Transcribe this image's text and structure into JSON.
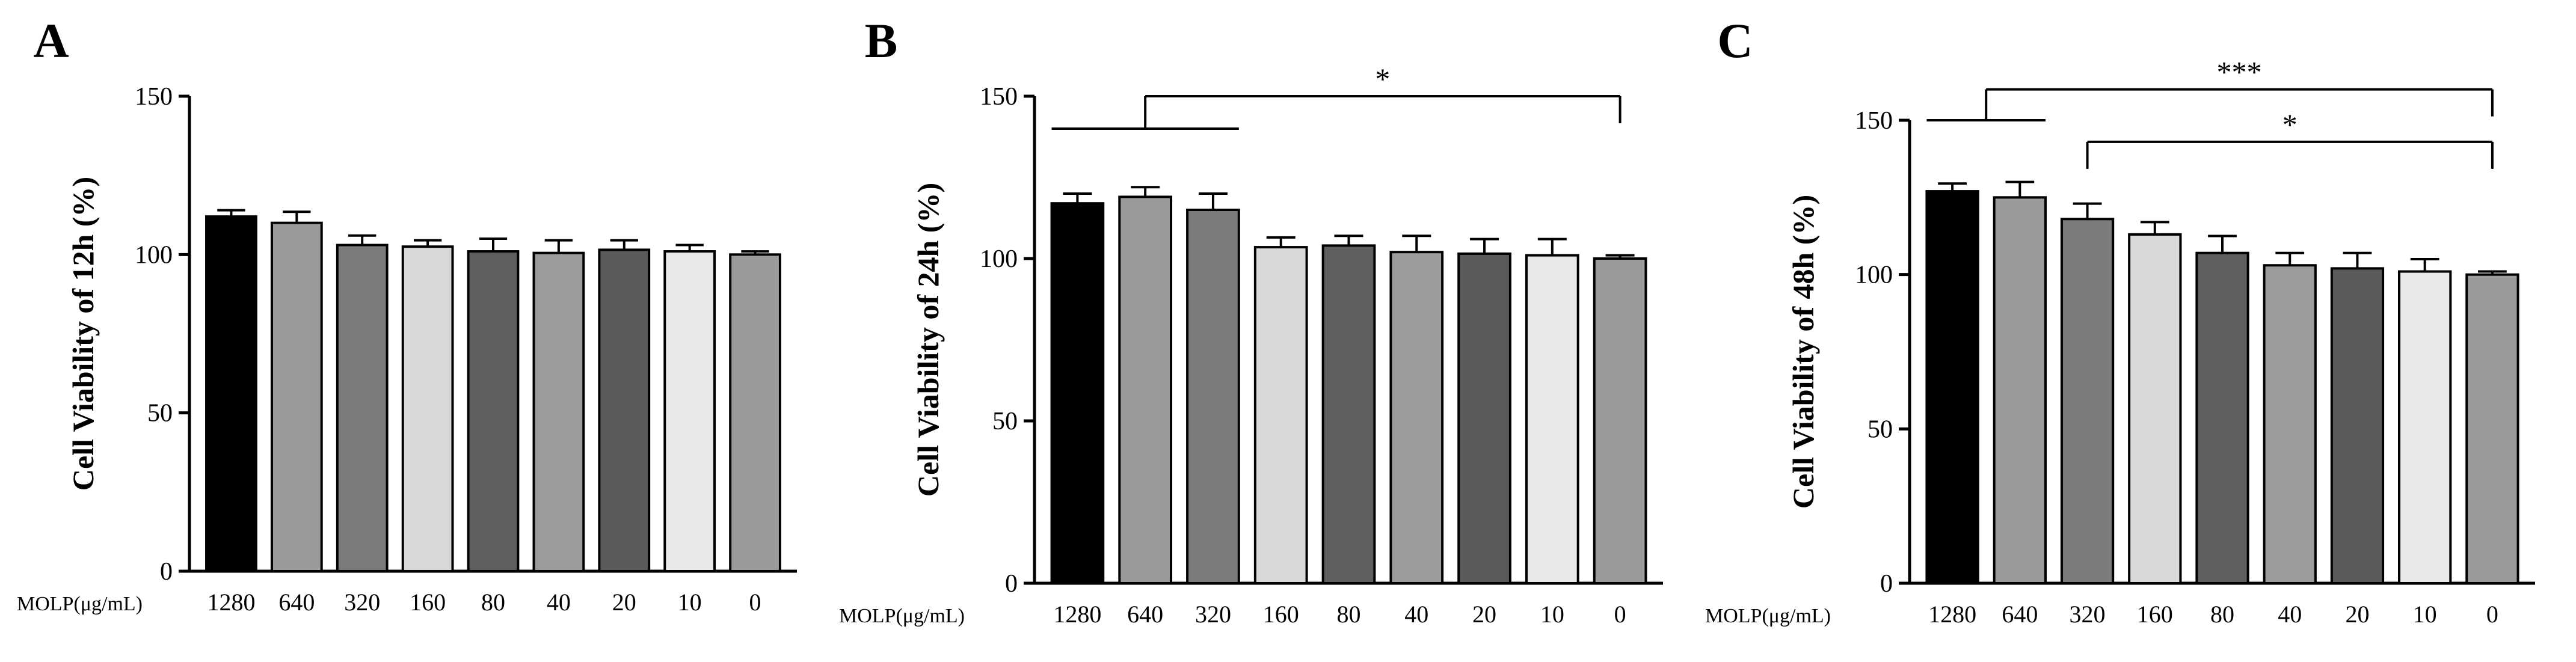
{
  "figure": {
    "colors": {
      "1280": "#000000",
      "640": "#9a9a9a",
      "320": "#7a7a7a",
      "160": "#d9d9d9",
      "80": "#5e5e5e",
      "40": "#9c9c9c",
      "20": "#5a5a5a",
      "10": "#e8e8e8",
      "0": "#9b9b9b"
    }
  },
  "chart_data": [
    {
      "type": "bar",
      "panel_label": "A",
      "title": "",
      "xlabel": "MOLP(μg/mL)",
      "ylabel": "Cell Viability of 12h (%)",
      "categories": [
        "1280",
        "640",
        "320",
        "160",
        "80",
        "40",
        "20",
        "10",
        "0"
      ],
      "values": [
        112,
        110,
        103,
        102.5,
        101,
        100.5,
        101.5,
        101,
        100
      ],
      "errors": [
        2,
        3.5,
        3,
        2,
        4,
        4,
        3,
        2,
        1
      ],
      "ylim": [
        0,
        150
      ],
      "yticks": [
        "0",
        "50",
        "100",
        "150"
      ],
      "grid": false,
      "significance": []
    },
    {
      "type": "bar",
      "panel_label": "B",
      "title": "",
      "xlabel": "MOLP(μg/mL)",
      "ylabel": "Cell Viability of 24h (%)",
      "categories": [
        "1280",
        "640",
        "320",
        "160",
        "80",
        "40",
        "20",
        "10",
        "0"
      ],
      "values": [
        117,
        119,
        115,
        103.5,
        104,
        102,
        101.5,
        101,
        100
      ],
      "errors": [
        3,
        3,
        5,
        3,
        3,
        5,
        4.5,
        5,
        1
      ],
      "ylim": [
        0,
        150
      ],
      "yticks": [
        "0",
        "50",
        "100",
        "150"
      ],
      "grid": false,
      "significance": [
        {
          "from_group": [
            "1280",
            "320"
          ],
          "to": "0",
          "label": "*",
          "level": 150
        }
      ]
    },
    {
      "type": "bar",
      "panel_label": "C",
      "title": "",
      "xlabel": "MOLP(μg/mL)",
      "ylabel": "Cell Viability of 48h (%)",
      "categories": [
        "1280",
        "640",
        "320",
        "160",
        "80",
        "40",
        "20",
        "10",
        "0"
      ],
      "values": [
        127,
        125,
        118,
        113,
        107,
        103,
        102,
        101,
        100
      ],
      "errors": [
        2.5,
        5,
        5,
        4,
        5.5,
        4,
        5,
        4,
        1
      ],
      "ylim": [
        0,
        150
      ],
      "yticks": [
        "0",
        "50",
        "100",
        "150"
      ],
      "grid": false,
      "significance": [
        {
          "from_group": [
            "1280",
            "640"
          ],
          "to": "0",
          "label": "***",
          "level": 160
        },
        {
          "from_group": [
            "320"
          ],
          "to": "0",
          "label": "*",
          "level": 143
        }
      ]
    }
  ]
}
